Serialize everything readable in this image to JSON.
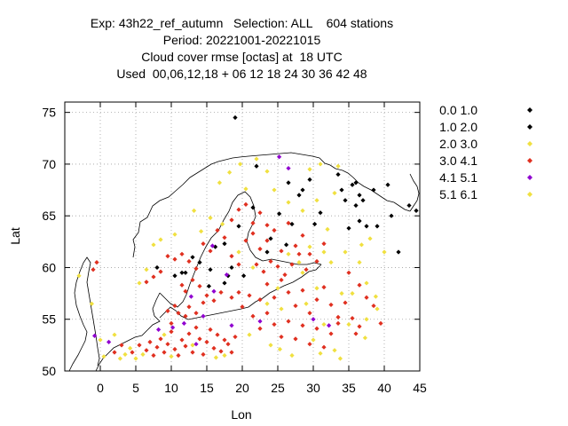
{
  "chart_data": {
    "type": "scatter",
    "title_lines": [
      "Exp: 43h22_ref_autumn   Selection: ALL    604 stations",
      "Period: 20221001-20221015",
      "Cloud cover rmse [octas] at  18 UTC",
      "Used  00,06,12,18 + 06 12 18 24 30 36 42 48"
    ],
    "xlabel": "Lon",
    "ylabel": "Lat",
    "xlim": [
      -5,
      45
    ],
    "ylim": [
      50,
      76
    ],
    "xticks": [
      0,
      5,
      10,
      15,
      20,
      25,
      30,
      35,
      40,
      45
    ],
    "yticks": [
      50,
      55,
      60,
      65,
      70,
      75
    ],
    "grid": true,
    "legend_position": "outside-right",
    "series": [
      {
        "name": "0.0 1.0",
        "color": "#000000",
        "points": [
          [
            19,
            74.5
          ],
          [
            33.5,
            69
          ],
          [
            35.5,
            68
          ],
          [
            36.5,
            67
          ],
          [
            38.5,
            67.5
          ],
          [
            40.5,
            68
          ],
          [
            41,
            65
          ],
          [
            43.5,
            66
          ],
          [
            44.5,
            65.5
          ],
          [
            37,
            66.5
          ],
          [
            36,
            66
          ],
          [
            36.5,
            64.5
          ],
          [
            35,
            63.8
          ],
          [
            37.5,
            64
          ],
          [
            39,
            64
          ],
          [
            34,
            67.5
          ],
          [
            36,
            68.2
          ],
          [
            28.5,
            67.5
          ],
          [
            29.5,
            68.5
          ],
          [
            26.5,
            68.2
          ],
          [
            28,
            67
          ],
          [
            27,
            64.2
          ],
          [
            24,
            62.8
          ],
          [
            13,
            61
          ],
          [
            8,
            60
          ],
          [
            10.5,
            59.2
          ],
          [
            11.5,
            59.5
          ],
          [
            12,
            59.5
          ],
          [
            17.5,
            58.5
          ],
          [
            18.5,
            60
          ],
          [
            18,
            59.2
          ],
          [
            23.5,
            61.5
          ],
          [
            25.2,
            65.2
          ],
          [
            31,
            65.3
          ],
          [
            42,
            61.5
          ]
        ]
      },
      {
        "name": "1.0 2.0",
        "color": "#000000",
        "points": [
          [
            14,
            60.5
          ],
          [
            16.2,
            62
          ],
          [
            26.2,
            62.2
          ],
          [
            34.5,
            66.5
          ],
          [
            30.2,
            64.2
          ],
          [
            21.5,
            65.8
          ],
          [
            22,
            69.8
          ],
          [
            19.5,
            64
          ],
          [
            15.3,
            58.2
          ],
          [
            17.5,
            62.3
          ],
          [
            20.2,
            59.2
          ],
          [
            15.5,
            59.8
          ]
        ]
      },
      {
        "name": "2.0 3.0",
        "color": "#f0e040",
        "points": [
          [
            -3,
            59.2
          ],
          [
            -1.2,
            56.5
          ],
          [
            0,
            53
          ],
          [
            2,
            53.5
          ],
          [
            3.5,
            51.6
          ],
          [
            4.2,
            52.2
          ],
          [
            5,
            51.2
          ],
          [
            9,
            53.5
          ],
          [
            5.5,
            58.5
          ],
          [
            6.5,
            59.8
          ],
          [
            7.5,
            62.2
          ],
          [
            8.5,
            62.7
          ],
          [
            10.5,
            63.2
          ],
          [
            13.2,
            65.5
          ],
          [
            15.5,
            64.8
          ],
          [
            16.8,
            68.2
          ],
          [
            18.2,
            69.2
          ],
          [
            19.7,
            70
          ],
          [
            22,
            70.5
          ],
          [
            23.5,
            69.3
          ],
          [
            24.5,
            67.5
          ],
          [
            26.5,
            66.3
          ],
          [
            28.5,
            65.5
          ],
          [
            29.5,
            69.5
          ],
          [
            31,
            70
          ],
          [
            33.5,
            69.8
          ],
          [
            26.5,
            61.3
          ],
          [
            29.5,
            62
          ],
          [
            31.5,
            61.5
          ],
          [
            32.5,
            60.5
          ],
          [
            34.5,
            61.5
          ],
          [
            36.5,
            60.5
          ],
          [
            37.5,
            58.5
          ],
          [
            38,
            62.8
          ],
          [
            40,
            61.5
          ],
          [
            39,
            56
          ],
          [
            37.5,
            55
          ],
          [
            35,
            54.5
          ],
          [
            33,
            52
          ],
          [
            30,
            53
          ],
          [
            27,
            51.5
          ],
          [
            24,
            52.5
          ],
          [
            21,
            53.5
          ],
          [
            17.5,
            51.5
          ],
          [
            13,
            52.5
          ],
          [
            19.5,
            61.5
          ],
          [
            21.5,
            60
          ],
          [
            25,
            58
          ],
          [
            28.5,
            59.5
          ],
          [
            30.5,
            58
          ],
          [
            34,
            57.5
          ],
          [
            35.5,
            57.5
          ],
          [
            32,
            63.7
          ],
          [
            30.5,
            66.5
          ],
          [
            28,
            60.5
          ],
          [
            23.5,
            56.5
          ],
          [
            25.5,
            56
          ],
          [
            29,
            56.5
          ],
          [
            31.5,
            54.5
          ]
        ]
      },
      {
        "name": "3.0 4.1",
        "color": "#e03020",
        "points": [
          [
            -1,
            59.8
          ],
          [
            -0.5,
            60.5
          ],
          [
            2,
            51.8
          ],
          [
            3,
            52.5
          ],
          [
            4.5,
            51.8
          ],
          [
            5.5,
            52.5
          ],
          [
            6.5,
            52
          ],
          [
            7,
            52.8
          ],
          [
            7.5,
            51.5
          ],
          [
            8,
            52.3
          ],
          [
            8.5,
            53.1
          ],
          [
            9,
            51.8
          ],
          [
            9.5,
            52.6
          ],
          [
            10,
            53.8
          ],
          [
            10.5,
            52.1
          ],
          [
            11,
            51.5
          ],
          [
            11.5,
            53
          ],
          [
            12,
            52.4
          ],
          [
            12.5,
            53.6
          ],
          [
            13,
            51.8
          ],
          [
            13.5,
            54.2
          ],
          [
            14,
            53.1
          ],
          [
            14.5,
            51.6
          ],
          [
            15,
            52.8
          ],
          [
            15.5,
            54
          ],
          [
            16,
            52.2
          ],
          [
            16.5,
            53.5
          ],
          [
            17,
            51.9
          ],
          [
            17.5,
            53
          ],
          [
            18,
            52.6
          ],
          [
            18.5,
            51.8
          ],
          [
            19,
            53.3
          ],
          [
            10,
            54.6
          ],
          [
            11,
            55.6
          ],
          [
            12,
            55.3
          ],
          [
            9.5,
            55.8
          ],
          [
            10.5,
            56.3
          ],
          [
            12.5,
            56.2
          ],
          [
            13.5,
            55.6
          ],
          [
            14.5,
            56.6
          ],
          [
            15,
            57.3
          ],
          [
            16,
            56.8
          ],
          [
            17,
            57.6
          ],
          [
            14,
            58.2
          ],
          [
            13,
            58.8
          ],
          [
            12,
            57.7
          ],
          [
            11.5,
            58.3
          ],
          [
            18.5,
            57.1
          ],
          [
            19.5,
            57.6
          ],
          [
            20,
            56.2
          ],
          [
            21,
            57.3
          ],
          [
            22.5,
            56.9
          ],
          [
            23.5,
            58.4
          ],
          [
            24.5,
            57.1
          ],
          [
            25.5,
            58.8
          ],
          [
            26.5,
            57.6
          ],
          [
            27.5,
            56.3
          ],
          [
            28.5,
            57.8
          ],
          [
            29.5,
            55.6
          ],
          [
            30.5,
            56.9
          ],
          [
            31.5,
            58.1
          ],
          [
            32.5,
            56.4
          ],
          [
            33.5,
            55.2
          ],
          [
            34.5,
            56.6
          ],
          [
            35.5,
            55.1
          ],
          [
            36.5,
            54.3
          ],
          [
            21.5,
            55.3
          ],
          [
            22.5,
            54.1
          ],
          [
            23.5,
            55.6
          ],
          [
            24.5,
            54.5
          ],
          [
            25.5,
            53.3
          ],
          [
            26.5,
            54.8
          ],
          [
            27.5,
            53.1
          ],
          [
            28.5,
            54.4
          ],
          [
            29.5,
            52.6
          ],
          [
            30.5,
            54.1
          ],
          [
            31.5,
            52.3
          ],
          [
            32.5,
            53.6
          ],
          [
            33.5,
            54.6
          ],
          [
            20.5,
            62.6
          ],
          [
            21.5,
            63.3
          ],
          [
            22.5,
            61.8
          ],
          [
            23.5,
            62.6
          ],
          [
            24.5,
            63.6
          ],
          [
            25.5,
            61.6
          ],
          [
            26.5,
            64.3
          ],
          [
            27.5,
            62.1
          ],
          [
            28.5,
            63.1
          ],
          [
            29.5,
            61.3
          ],
          [
            30.5,
            60.6
          ],
          [
            31.5,
            62.3
          ],
          [
            22,
            60.3
          ],
          [
            23,
            59.6
          ],
          [
            24,
            60.6
          ],
          [
            25,
            60.1
          ],
          [
            26,
            59.3
          ],
          [
            27,
            60.3
          ],
          [
            28,
            61.3
          ],
          [
            29,
            59.8
          ],
          [
            19.5,
            60.3
          ],
          [
            18.5,
            61.1
          ],
          [
            17.5,
            62.9
          ],
          [
            16.5,
            63.6
          ],
          [
            15.5,
            61.6
          ],
          [
            14.5,
            62.3
          ],
          [
            13.5,
            59.9
          ],
          [
            12.5,
            60.6
          ],
          [
            11.5,
            61.3
          ],
          [
            10.5,
            60.8
          ],
          [
            9.5,
            61.1
          ],
          [
            8.5,
            59.6
          ],
          [
            7.5,
            59.1
          ],
          [
            6.5,
            58.6
          ],
          [
            18.5,
            64.6
          ],
          [
            19.5,
            65.6
          ],
          [
            20.5,
            66.1
          ],
          [
            21.5,
            64.3
          ],
          [
            22.5,
            65.3
          ],
          [
            23.5,
            64.1
          ],
          [
            35,
            59.5
          ],
          [
            36.5,
            58.3
          ],
          [
            37.5,
            57.1
          ],
          [
            38.5,
            56.3
          ],
          [
            39.5,
            54.6
          ],
          [
            36,
            53.6
          ]
        ]
      },
      {
        "name": "4.1 5.1",
        "color": "#9000d0",
        "points": [
          [
            -0.8,
            53.4
          ],
          [
            1.2,
            52.8
          ],
          [
            11.8,
            54.6
          ],
          [
            14.5,
            55.3
          ],
          [
            13.5,
            52.6
          ],
          [
            8.2,
            54
          ],
          [
            10.2,
            54.2
          ],
          [
            18.5,
            54.4
          ],
          [
            22.5,
            54.8
          ],
          [
            25.2,
            70.7
          ],
          [
            26.5,
            69.6
          ],
          [
            30,
            55
          ],
          [
            32.2,
            54.4
          ],
          [
            17.8,
            59.3
          ],
          [
            15.8,
            62.1
          ],
          [
            12.8,
            57.2
          ],
          [
            16,
            57.7
          ]
        ]
      },
      {
        "name": "5.1 6.1",
        "color": "#f0e040",
        "points": [
          [
            0.5,
            51.4
          ],
          [
            2.8,
            51.2
          ],
          [
            6,
            51.6
          ],
          [
            10,
            51.4
          ],
          [
            16.3,
            51.3
          ],
          [
            25.3,
            52.1
          ],
          [
            31,
            51.7
          ],
          [
            33.8,
            51.2
          ],
          [
            37.3,
            53.2
          ],
          [
            38.8,
            57.2
          ],
          [
            36.8,
            62.2
          ],
          [
            17.2,
            64.2
          ],
          [
            14.2,
            63.5
          ],
          [
            20.5,
            67.6
          ],
          [
            33,
            67.2
          ]
        ]
      }
    ]
  },
  "legend_entries": [
    {
      "label": "0.0 1.0",
      "color": "#000000"
    },
    {
      "label": "1.0 2.0",
      "color": "#000000"
    },
    {
      "label": "2.0 3.0",
      "color": "#f0e040"
    },
    {
      "label": "3.0 4.1",
      "color": "#e03020"
    },
    {
      "label": "4.1 5.1",
      "color": "#9000d0"
    },
    {
      "label": "5.1 6.1",
      "color": "#f0e040"
    }
  ],
  "coastline_color": "#000000",
  "grid_color": "#a0a0a0"
}
